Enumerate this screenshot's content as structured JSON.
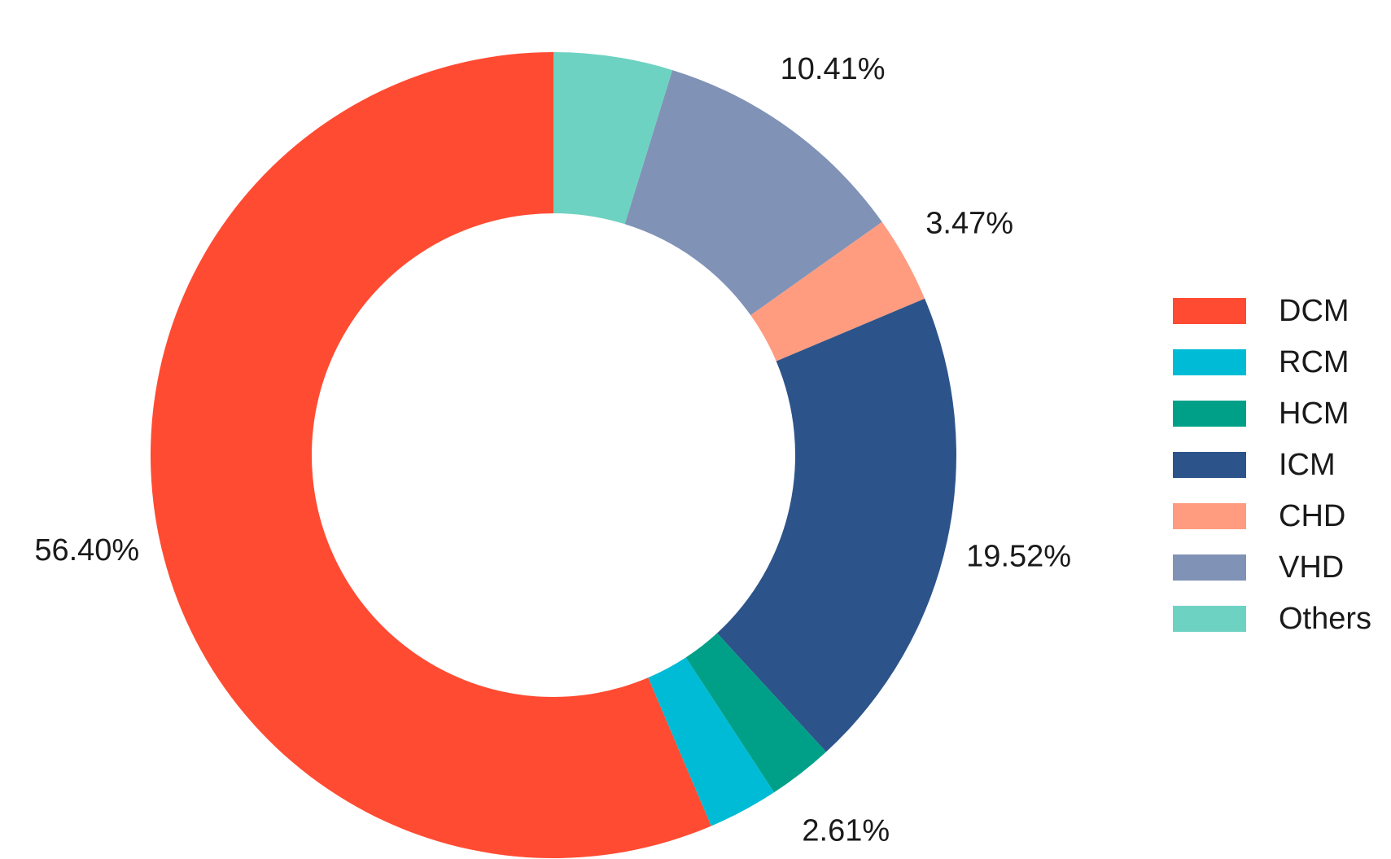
{
  "chart_data": {
    "type": "pie",
    "subtype": "donut",
    "title": "",
    "direction": "clockwise",
    "start_angle": "12 o'clock",
    "legend_position": "right",
    "slices": [
      {
        "name": "Others",
        "value": 4.77,
        "label": "4.77%",
        "color": "#6ED2C2"
      },
      {
        "name": "VHD",
        "value": 10.41,
        "label": "10.41%",
        "color": "#8092B6"
      },
      {
        "name": "CHD",
        "value": 3.47,
        "label": "3.47%",
        "color": "#FF9C80"
      },
      {
        "name": "ICM",
        "value": 19.52,
        "label": "19.52%",
        "color": "#2D548A"
      },
      {
        "name": "HCM",
        "value": 2.61,
        "label": "2.61%",
        "color": "#00A088"
      },
      {
        "name": "RCM",
        "value": 2.82,
        "label": "2.82%",
        "color": "#00BBD6"
      },
      {
        "name": "DCM",
        "value": 56.4,
        "label": "56.40%",
        "color": "#FF4B32"
      }
    ],
    "legend": [
      {
        "name": "DCM",
        "color": "#FF4B32"
      },
      {
        "name": "RCM",
        "color": "#00BBD6"
      },
      {
        "name": "HCM",
        "color": "#00A088"
      },
      {
        "name": "ICM",
        "color": "#2D548A"
      },
      {
        "name": "CHD",
        "color": "#FF9C80"
      },
      {
        "name": "VHD",
        "color": "#8092B6"
      },
      {
        "name": "Others",
        "color": "#6ED2C2"
      }
    ]
  }
}
